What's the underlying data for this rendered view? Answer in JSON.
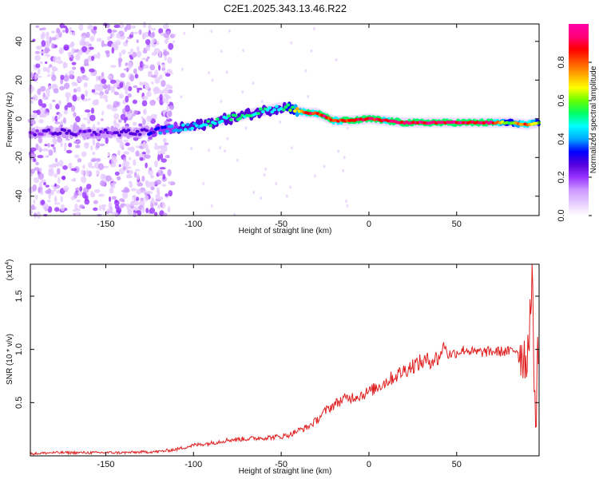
{
  "figure_title": "C2E1.2025.343.13.46.R22",
  "chart_data": [
    {
      "type": "heatmap",
      "xlabel": "Height of straight line (km)",
      "ylabel": "Frequency (Hz)",
      "xlim": [
        -193,
        97
      ],
      "ylim": [
        -50,
        49
      ],
      "x_ticks": [
        -150,
        -100,
        -50,
        0,
        50
      ],
      "y_ticks": [
        40,
        20,
        0,
        -20,
        -40
      ],
      "colorbar": {
        "label": "Normalized spectral amplitude",
        "range": [
          0,
          1
        ],
        "ticks": [
          "0.0",
          "0.2",
          "0.4",
          "0.6",
          "0.8"
        ],
        "colors": [
          "#ffffff",
          "#e6ccff",
          "#cc99ff",
          "#9933ff",
          "#5500dd",
          "#0000ff",
          "#00aaff",
          "#00ffff",
          "#00ff66",
          "#66ff00",
          "#ffff00",
          "#ffaa00",
          "#ff5500",
          "#ff0000",
          "#ff0077",
          "#ff00aa"
        ]
      },
      "ridge": {
        "x": [
          -193,
          -175,
          -160,
          -150,
          -140,
          -130,
          -120,
          -110,
          -100,
          -90,
          -80,
          -70,
          -60,
          -50,
          -45,
          -40,
          -35,
          -30,
          -25,
          -20,
          -10,
          0,
          10,
          20,
          30,
          40,
          50,
          60,
          70,
          80,
          90,
          97
        ],
        "freq": [
          -7,
          -7,
          -7,
          -7,
          -7,
          -7,
          -6,
          -5,
          -4,
          -2,
          0,
          2,
          4,
          6,
          6,
          4,
          3,
          3,
          1,
          -1,
          -1,
          0,
          -1,
          -2,
          -2,
          -2,
          -2,
          -2,
          -2,
          -2,
          -3,
          -2
        ],
        "amplitude": [
          0.25,
          0.3,
          0.25,
          0.28,
          0.3,
          0.3,
          0.38,
          0.45,
          0.5,
          0.52,
          0.55,
          0.55,
          0.55,
          0.5,
          0.6,
          0.75,
          0.92,
          0.9,
          0.95,
          0.9,
          0.92,
          0.95,
          0.9,
          0.95,
          0.97,
          0.98,
          0.97,
          0.97,
          0.95,
          0.6,
          0.9,
          0.6
        ]
      },
      "noise_region_km": [
        -193,
        -120
      ]
    },
    {
      "type": "line",
      "xlabel": "Height of straight line (km)",
      "ylabel": "SNR (10 * v/v)",
      "exponent_label": "(x10",
      "exponent_power": "4",
      "exponent_close": ")",
      "xlim": [
        -193,
        97
      ],
      "ylim": [
        0,
        1.8
      ],
      "x_ticks": [
        -150,
        -100,
        -50,
        0,
        50
      ],
      "y_ticks": [
        0.5,
        1.0,
        1.5
      ],
      "y_tick_labels": [
        "0.5",
        "1.0",
        "1.5"
      ],
      "line_color": "#e02020",
      "series": [
        {
          "name": "SNR",
          "x": [
            -193,
            -180,
            -160,
            -140,
            -120,
            -110,
            -100,
            -90,
            -80,
            -70,
            -60,
            -50,
            -45,
            -40,
            -35,
            -30,
            -25,
            -20,
            -15,
            -10,
            -5,
            0,
            5,
            10,
            15,
            20,
            25,
            30,
            35,
            40,
            43,
            45,
            50,
            55,
            60,
            70,
            80,
            85,
            88,
            90,
            93,
            95,
            97
          ],
          "y": [
            0.02,
            0.03,
            0.03,
            0.03,
            0.04,
            0.06,
            0.1,
            0.12,
            0.15,
            0.16,
            0.17,
            0.18,
            0.2,
            0.24,
            0.27,
            0.33,
            0.42,
            0.48,
            0.53,
            0.55,
            0.57,
            0.6,
            0.65,
            0.7,
            0.75,
            0.8,
            0.85,
            0.88,
            0.9,
            0.92,
            1.05,
            0.95,
            0.97,
            1.0,
            0.97,
            0.98,
            0.98,
            1.0,
            0.95,
            0.9,
            1.6,
            0.3,
            1.3
          ]
        }
      ]
    }
  ]
}
